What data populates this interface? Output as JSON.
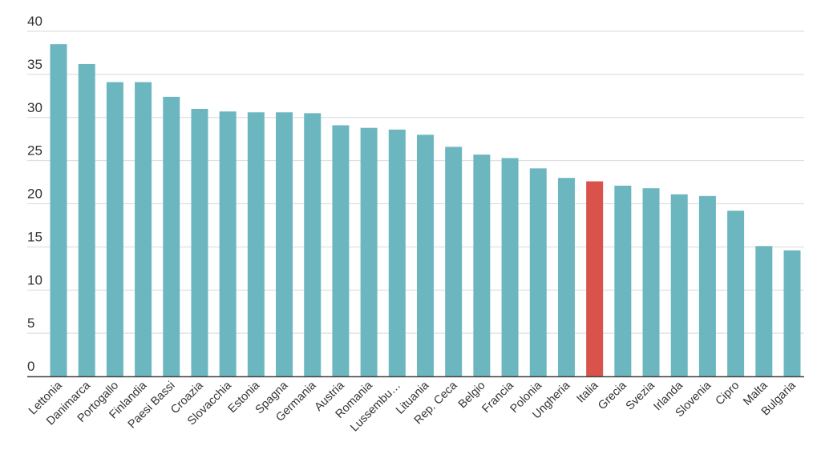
{
  "chart_data": {
    "type": "bar",
    "title": "",
    "xlabel": "",
    "ylabel": "",
    "ylim": [
      0,
      40
    ],
    "yticks": [
      0,
      5,
      10,
      15,
      20,
      25,
      30,
      35,
      40
    ],
    "grid": "horizontal",
    "legend": "none",
    "categories": [
      "Lettonia",
      "Danimarca",
      "Portogallo",
      "Finlandia",
      "Paesi Bassi",
      "Croazia",
      "Slovacchia",
      "Estonia",
      "Spagna",
      "Germania",
      "Austria",
      "Romania",
      "Lussembu…",
      "Lituania",
      "Rep. Ceca",
      "Belgio",
      "Francia",
      "Polonia",
      "Ungheria",
      "Italia",
      "Grecia",
      "Svezia",
      "Irlanda",
      "Slovenia",
      "Cipro",
      "Malta",
      "Bulgaria"
    ],
    "values": [
      38.5,
      36.2,
      34.1,
      34.1,
      32.4,
      31.0,
      30.7,
      30.6,
      30.6,
      30.5,
      29.1,
      28.8,
      28.6,
      28.0,
      26.6,
      25.7,
      25.3,
      24.1,
      23.0,
      22.6,
      22.1,
      21.8,
      21.1,
      20.9,
      19.2,
      15.1,
      14.6
    ],
    "highlight_category": "Italia",
    "colors": {
      "bar": "#6cb7bf",
      "highlight": "#d9534a",
      "grid": "#d9d9d9",
      "axis": "#444444",
      "text": "#333333"
    }
  }
}
